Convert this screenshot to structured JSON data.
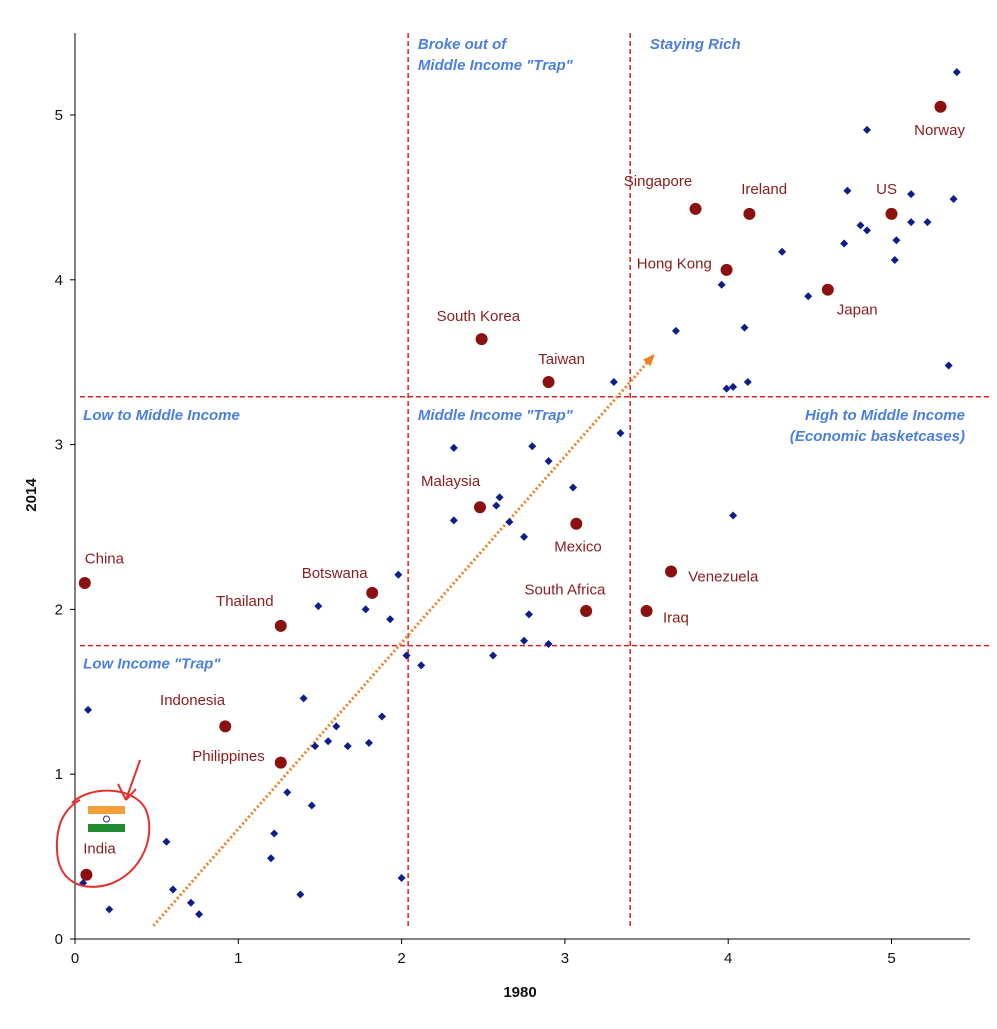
{
  "chart_data": {
    "type": "scatter",
    "xlabel": "1980",
    "ylabel": "2014",
    "xlim": [
      0,
      5.5
    ],
    "ylim": [
      0,
      5.5
    ],
    "xticks": [
      "0",
      "1",
      "2",
      "3",
      "4",
      "5"
    ],
    "yticks": [
      "0",
      "1",
      "2",
      "3",
      "4",
      "5"
    ],
    "threshold_lines": {
      "x": [
        2.04,
        3.4
      ],
      "y": [
        1.78,
        3.29
      ]
    },
    "trend_arrow": {
      "from": [
        0.48,
        0.08
      ],
      "to": [
        3.55,
        3.55
      ]
    },
    "region_labels": [
      {
        "lines": [
          "Broke out of",
          "Middle Income \"Trap\""
        ],
        "x": 2.1,
        "y": 5.4,
        "anchor": "start"
      },
      {
        "lines": [
          "Staying Rich"
        ],
        "x": 3.52,
        "y": 5.4,
        "anchor": "start"
      },
      {
        "lines": [
          "Low to Middle Income"
        ],
        "x": 0.05,
        "y": 3.15,
        "anchor": "start"
      },
      {
        "lines": [
          "Middle Income \"Trap\""
        ],
        "x": 2.1,
        "y": 3.15,
        "anchor": "start"
      },
      {
        "lines": [
          "High to Middle Income",
          "(Economic basketcases)"
        ],
        "x": 5.45,
        "y": 3.15,
        "anchor": "end"
      },
      {
        "lines": [
          "Low Income \"Trap\""
        ],
        "x": 0.05,
        "y": 1.64,
        "anchor": "start"
      }
    ],
    "highlighted": [
      {
        "name": "Norway",
        "x": 5.3,
        "y": 5.05,
        "lx": 5.45,
        "ly": 4.88,
        "anchor": "end"
      },
      {
        "name": "Singapore",
        "x": 3.8,
        "y": 4.43,
        "lx": 3.57,
        "ly": 4.57,
        "anchor": "middle"
      },
      {
        "name": "Ireland",
        "x": 4.13,
        "y": 4.4,
        "lx": 4.22,
        "ly": 4.52,
        "anchor": "middle"
      },
      {
        "name": "US",
        "x": 5.0,
        "y": 4.4,
        "lx": 4.97,
        "ly": 4.52,
        "anchor": "middle"
      },
      {
        "name": "Hong Kong",
        "x": 3.99,
        "y": 4.06,
        "lx": 3.67,
        "ly": 4.07,
        "anchor": "middle"
      },
      {
        "name": "Japan",
        "x": 4.61,
        "y": 3.94,
        "lx": 4.79,
        "ly": 3.79,
        "anchor": "middle"
      },
      {
        "name": "South Korea",
        "x": 2.49,
        "y": 3.64,
        "lx": 2.47,
        "ly": 3.75,
        "anchor": "middle"
      },
      {
        "name": "Taiwan",
        "x": 2.9,
        "y": 3.38,
        "lx": 2.98,
        "ly": 3.49,
        "anchor": "middle"
      },
      {
        "name": "Malaysia",
        "x": 2.48,
        "y": 2.62,
        "lx": 2.3,
        "ly": 2.75,
        "anchor": "middle"
      },
      {
        "name": "Mexico",
        "x": 3.07,
        "y": 2.52,
        "lx": 3.08,
        "ly": 2.35,
        "anchor": "middle"
      },
      {
        "name": "China",
        "x": 0.06,
        "y": 2.16,
        "lx": 0.18,
        "ly": 2.28,
        "anchor": "middle"
      },
      {
        "name": "Botswana",
        "x": 1.82,
        "y": 2.1,
        "lx": 1.59,
        "ly": 2.19,
        "anchor": "middle"
      },
      {
        "name": "Thailand",
        "x": 1.26,
        "y": 1.9,
        "lx": 1.04,
        "ly": 2.02,
        "anchor": "middle"
      },
      {
        "name": "Venezuela",
        "x": 3.65,
        "y": 2.23,
        "lx": 3.97,
        "ly": 2.17,
        "anchor": "middle"
      },
      {
        "name": "South Africa",
        "x": 3.13,
        "y": 1.99,
        "lx": 3.0,
        "ly": 2.09,
        "anchor": "middle"
      },
      {
        "name": "Iraq",
        "x": 3.5,
        "y": 1.99,
        "lx": 3.68,
        "ly": 1.92,
        "anchor": "middle"
      },
      {
        "name": "Indonesia",
        "x": 0.92,
        "y": 1.29,
        "lx": 0.72,
        "ly": 1.42,
        "anchor": "middle"
      },
      {
        "name": "Philippines",
        "x": 1.26,
        "y": 1.07,
        "lx": 0.94,
        "ly": 1.08,
        "anchor": "middle"
      },
      {
        "name": "India",
        "x": 0.07,
        "y": 0.39,
        "lx": 0.15,
        "ly": 0.52,
        "anchor": "middle"
      }
    ],
    "points": [
      [
        5.4,
        5.26
      ],
      [
        4.85,
        4.91
      ],
      [
        4.73,
        4.54
      ],
      [
        5.12,
        4.52
      ],
      [
        5.38,
        4.49
      ],
      [
        4.81,
        4.33
      ],
      [
        4.85,
        4.3
      ],
      [
        5.12,
        4.35
      ],
      [
        5.22,
        4.35
      ],
      [
        4.71,
        4.22
      ],
      [
        5.03,
        4.24
      ],
      [
        4.33,
        4.17
      ],
      [
        5.02,
        4.12
      ],
      [
        3.96,
        3.97
      ],
      [
        4.49,
        3.9
      ],
      [
        3.68,
        3.69
      ],
      [
        4.1,
        3.71
      ],
      [
        5.35,
        3.48
      ],
      [
        3.3,
        3.38
      ],
      [
        4.12,
        3.38
      ],
      [
        3.99,
        3.34
      ],
      [
        4.03,
        3.35
      ],
      [
        3.34,
        3.07
      ],
      [
        2.32,
        2.98
      ],
      [
        2.8,
        2.99
      ],
      [
        2.9,
        2.9
      ],
      [
        3.05,
        2.74
      ],
      [
        2.6,
        2.68
      ],
      [
        2.58,
        2.63
      ],
      [
        2.32,
        2.54
      ],
      [
        2.66,
        2.53
      ],
      [
        2.75,
        2.44
      ],
      [
        4.03,
        2.57
      ],
      [
        1.98,
        2.21
      ],
      [
        1.49,
        2.02
      ],
      [
        1.78,
        2.0
      ],
      [
        1.93,
        1.94
      ],
      [
        2.78,
        1.97
      ],
      [
        2.75,
        1.81
      ],
      [
        2.9,
        1.79
      ],
      [
        2.03,
        1.72
      ],
      [
        2.56,
        1.72
      ],
      [
        2.12,
        1.66
      ],
      [
        0.08,
        1.39
      ],
      [
        1.4,
        1.46
      ],
      [
        1.6,
        1.29
      ],
      [
        1.88,
        1.35
      ],
      [
        1.55,
        1.2
      ],
      [
        1.47,
        1.17
      ],
      [
        1.67,
        1.17
      ],
      [
        1.8,
        1.19
      ],
      [
        1.3,
        0.89
      ],
      [
        1.45,
        0.81
      ],
      [
        1.22,
        0.64
      ],
      [
        0.56,
        0.59
      ],
      [
        1.2,
        0.49
      ],
      [
        0.6,
        0.3
      ],
      [
        0.71,
        0.22
      ],
      [
        1.38,
        0.27
      ],
      [
        2.0,
        0.37
      ],
      [
        0.21,
        0.18
      ],
      [
        0.76,
        0.15
      ],
      [
        0.05,
        0.34
      ]
    ]
  }
}
